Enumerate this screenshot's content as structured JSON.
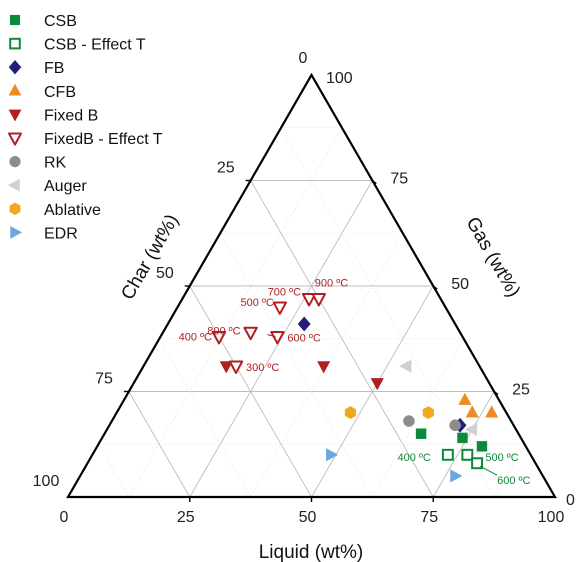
{
  "chart_data": {
    "type": "ternary-scatter",
    "axes": {
      "liquid": {
        "label": "Liquid (wt%)",
        "ticks": [
          "0",
          "25",
          "50",
          "75",
          "100"
        ]
      },
      "gas": {
        "label": "Gas (wt%)",
        "ticks": [
          "0",
          "25",
          "50",
          "75",
          "100"
        ]
      },
      "char": {
        "label": "Char (wt%)",
        "ticks": [
          "0",
          "25",
          "50",
          "75",
          "100"
        ]
      }
    },
    "grid": true,
    "legend_placement": "top-left",
    "series": [
      {
        "name": "CSB",
        "marker": "square",
        "filled": true,
        "color": "#0a8a3a",
        "points": [
          [
            65,
            15,
            20
          ],
          [
            74,
            14,
            12
          ],
          [
            79,
            12,
            9
          ]
        ]
      },
      {
        "name": "CSB - Effect T",
        "marker": "square",
        "filled": false,
        "color": "#0a8a3a",
        "points": [
          [
            73,
            10,
            17
          ],
          [
            77,
            10,
            13
          ],
          [
            80,
            8,
            12
          ]
        ]
      },
      {
        "name": "FB",
        "marker": "diamond",
        "filled": true,
        "color": "#1f1f7a",
        "points": [
          [
            28,
            41,
            31
          ],
          [
            72,
            17,
            11
          ]
        ]
      },
      {
        "name": "CFB",
        "marker": "triangle-up",
        "filled": true,
        "color": "#f08a24",
        "points": [
          [
            70,
            23,
            7
          ],
          [
            73,
            20,
            7
          ],
          [
            77,
            20,
            3
          ]
        ]
      },
      {
        "name": "Fixed B",
        "marker": "triangle-down",
        "filled": true,
        "color": "#b02020",
        "points": [
          [
            37,
            31,
            32
          ],
          [
            50,
            27,
            23
          ],
          [
            17,
            31,
            52
          ]
        ]
      },
      {
        "name": "FixedB - Effect T",
        "marker": "triangle-down",
        "filled": false,
        "color": "#b02020",
        "points": [
          [
            12,
            38,
            50
          ],
          [
            18,
            39,
            43
          ],
          [
            21,
            45,
            34
          ],
          [
            24,
            38,
            38
          ],
          [
            26,
            47,
            27
          ],
          [
            28,
            47,
            25
          ],
          [
            19,
            31,
            50
          ]
        ]
      },
      {
        "name": "RK",
        "marker": "circle",
        "filled": true,
        "color": "#8c8c8c",
        "points": [
          [
            61,
            18,
            21
          ],
          [
            71,
            17,
            12
          ]
        ]
      },
      {
        "name": "Auger",
        "marker": "triangle-left",
        "filled": true,
        "color": "#d0d0d0",
        "points": [
          [
            54,
            31,
            15
          ],
          [
            75,
            16,
            9
          ]
        ]
      },
      {
        "name": "Ablative",
        "marker": "hexagon",
        "filled": true,
        "color": "#f2a81d",
        "points": [
          [
            48,
            20,
            32
          ],
          [
            64,
            20,
            16
          ]
        ]
      },
      {
        "name": "EDR",
        "marker": "triangle-right",
        "filled": true,
        "color": "#6aa8e0",
        "points": [
          [
            49,
            10,
            41
          ],
          [
            77,
            5,
            18
          ]
        ]
      }
    ],
    "annotations": [
      {
        "text": "300 ºC",
        "at": [
          19,
          31,
          50
        ],
        "color": "#b02020"
      },
      {
        "text": "400 ºC",
        "at": [
          12,
          38,
          50
        ],
        "color": "#b02020"
      },
      {
        "text": "500 ºC",
        "at": [
          21,
          45,
          34
        ],
        "color": "#b02020"
      },
      {
        "text": "600 ºC",
        "at": [
          24,
          38,
          38
        ],
        "color": "#b02020"
      },
      {
        "text": "700 ºC",
        "at": [
          26,
          47,
          27
        ],
        "color": "#b02020"
      },
      {
        "text": "800 ºC",
        "at": [
          18,
          39,
          43
        ],
        "color": "#b02020"
      },
      {
        "text": "900 ºC",
        "at": [
          28,
          47,
          25
        ],
        "color": "#b02020"
      },
      {
        "text": "400 ºC",
        "at": [
          73,
          10,
          17
        ],
        "color": "#0a8a3a"
      },
      {
        "text": "500 ºC",
        "at": [
          77,
          10,
          13
        ],
        "color": "#0a8a3a"
      },
      {
        "text": "600 ºC",
        "at": [
          80,
          8,
          12
        ],
        "color": "#0a8a3a"
      }
    ]
  }
}
